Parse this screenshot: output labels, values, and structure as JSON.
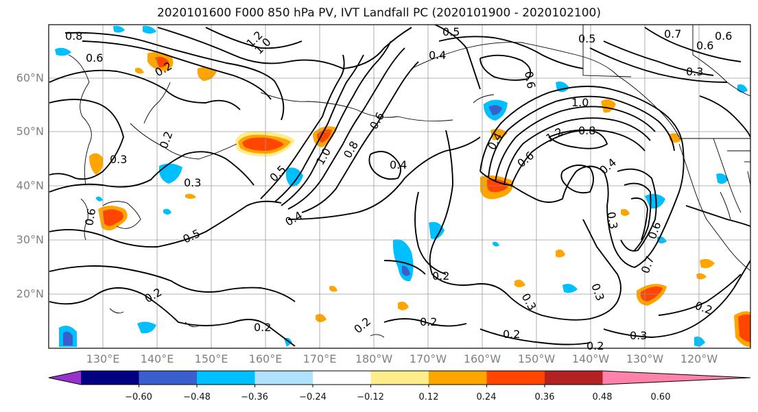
{
  "title": "2020101600 F000 850 hPa PV, IVT Landfall PC (2020101900 - 2020102100)",
  "lat_labels": [
    "60°N",
    "50°N",
    "40°N",
    "30°N",
    "20°N"
  ],
  "lon_labels": [
    "130°E",
    "140°E",
    "150°E",
    "160°E",
    "170°E",
    "180°W",
    "170°W",
    "160°W",
    "150°W",
    "140°W",
    "130°W",
    "120°W"
  ],
  "colorbar": {
    "tick_labels": [
      "−0.60",
      "−0.48",
      "−0.36",
      "−0.24",
      "−0.12",
      "0.12",
      "0.24",
      "0.36",
      "0.48",
      "0.60"
    ],
    "colors": [
      "#9932cc",
      "#000080",
      "#3a5fcd",
      "#00bfff",
      "#b0e2ff",
      "#ffffff",
      "#ffec8b",
      "#ffa500",
      "#ff4500",
      "#b22222",
      "#ff82ab"
    ]
  },
  "contour_labels": [
    "0.8",
    "0.6",
    "1.2",
    "1.0",
    "0.5",
    "0.4",
    "0.2",
    "0.3",
    "1.0",
    "0.8",
    "0.6",
    "0.5",
    "0.4",
    "0.3",
    "0.5",
    "0.2",
    "0.5",
    "0.6",
    "0.7",
    "0.6",
    "0.3",
    "0.6",
    "0.4",
    "1.0",
    "1.2",
    "0.8",
    "0.6",
    "0.4",
    "0.3",
    "0.6",
    "0.7",
    "0.2",
    "0.2",
    "0.3",
    "0.3",
    "0.2",
    "0.3",
    "0.2",
    "0.2",
    "0.2",
    "0.2",
    "0.2",
    "0.6",
    "0.4"
  ]
}
